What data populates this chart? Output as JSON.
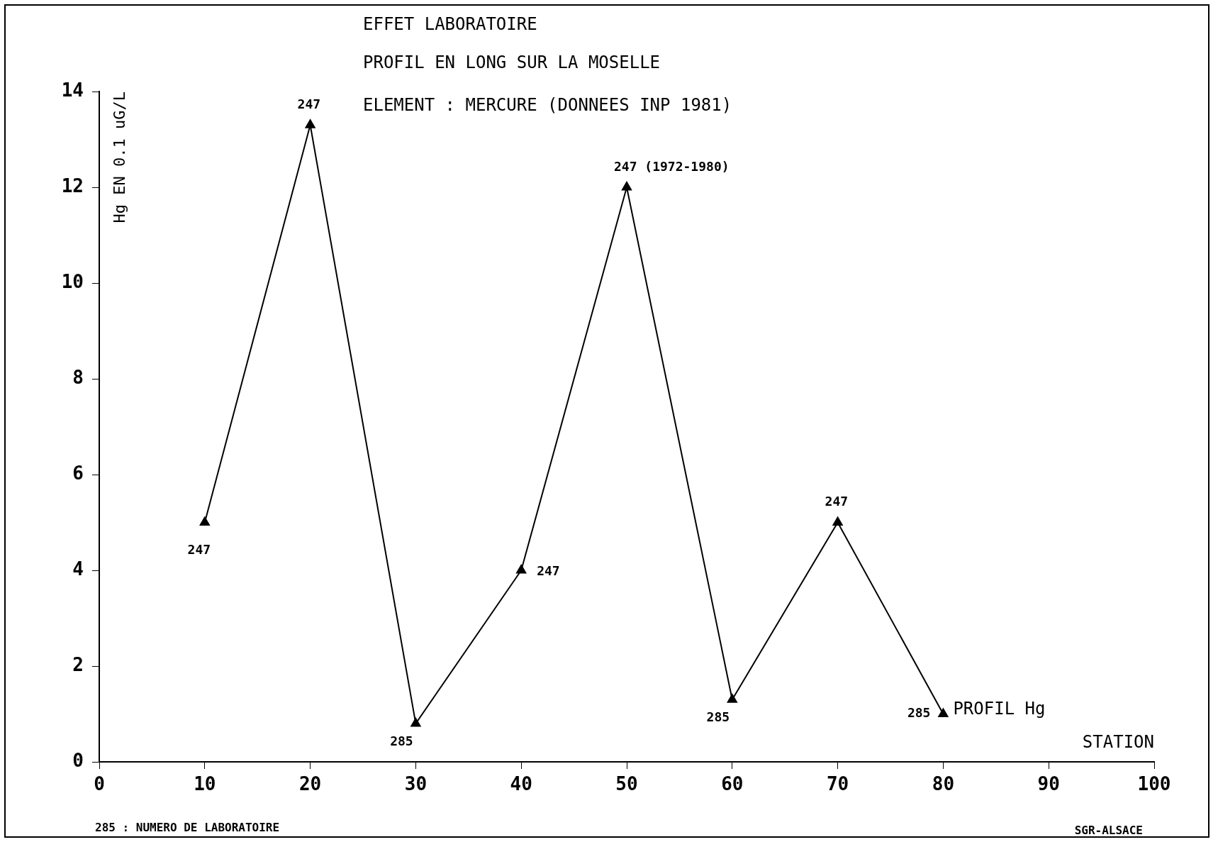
{
  "chart_data": {
    "type": "line",
    "title": "EFFET LABORATOIRE",
    "subtitle": "PROFIL EN LONG SUR LA MOSELLE",
    "xlabel": "STATION",
    "ylabel": "Hg EN 0.1 uG/L",
    "x": [
      10,
      20,
      30,
      40,
      50,
      60,
      70,
      80
    ],
    "series": [
      {
        "name": "PROFIL Hg",
        "color": "#000000",
        "values": [
          5.0,
          13.3,
          0.8,
          4.0,
          12.0,
          1.3,
          5.0,
          1.0
        ]
      }
    ],
    "xlim": [
      0,
      100
    ],
    "xticks": [
      0,
      10,
      20,
      30,
      40,
      50,
      60,
      70,
      80,
      90,
      100
    ],
    "ylim": [
      0,
      14
    ],
    "yticks": [
      0,
      2,
      4,
      6,
      8,
      10,
      12,
      14
    ],
    "grid": false,
    "legend": false,
    "marker": "triangle",
    "line_style": "solid",
    "annotations": [
      "ELEMENT : MERCURE (DONNEES INP 1981)",
      "285 : NUMERO DE LABORATOIRE",
      "SGR-ALSACE",
      {
        "text": "247",
        "x": 10,
        "y": 5.0
      },
      {
        "text": "247",
        "x": 20,
        "y": 13.3
      },
      {
        "text": "285",
        "x": 30,
        "y": 0.8
      },
      {
        "text": "247",
        "x": 40,
        "y": 4.0
      },
      {
        "text": "247 (1972-1980)",
        "x": 50,
        "y": 12.0
      },
      {
        "text": "285",
        "x": 60,
        "y": 1.3
      },
      {
        "text": "247",
        "x": 70,
        "y": 5.0
      },
      {
        "text": "285",
        "x": 80,
        "y": 1.0
      }
    ]
  }
}
